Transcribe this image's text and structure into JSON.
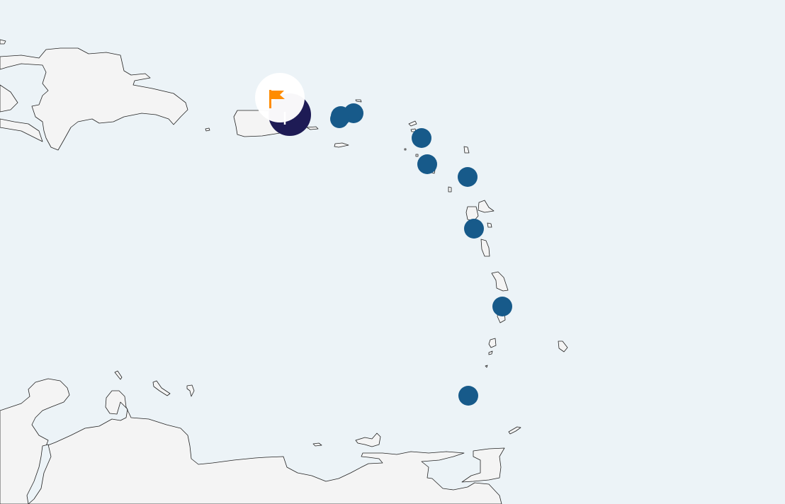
{
  "map": {
    "colors": {
      "sea": "#ecf3f7",
      "land": "#f4f4f4",
      "coastline": "#222222",
      "marker": "#175a8a",
      "selected_marker": "#1e1b55",
      "flag": "#ff8c00",
      "flag_halo": "#ffffff"
    },
    "marker_count": 10,
    "selected_marker_icon": "flag-icon"
  }
}
